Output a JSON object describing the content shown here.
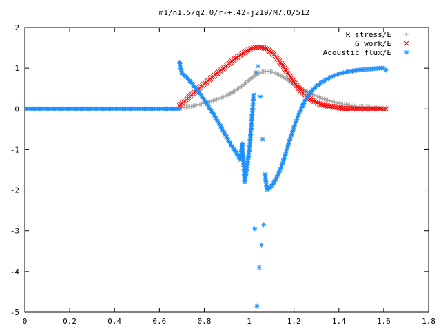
{
  "chart_data": {
    "type": "scatter",
    "title": "m1/n1.5/q2.0/r-+.42-j219/M7.0/512",
    "xlabel": "",
    "ylabel": "",
    "xlim": [
      0,
      1.8
    ],
    "ylim": [
      -5,
      2
    ],
    "x_ticks": [
      "0",
      "0.2",
      "0.4",
      "0.6",
      "0.8",
      "1",
      "1.2",
      "1.4",
      "1.6",
      "1.8"
    ],
    "y_ticks": [
      "2",
      "1",
      "0",
      "-1",
      "-2",
      "-3",
      "-4",
      "-5"
    ],
    "legend_position": "top-right",
    "grid": false,
    "series": [
      {
        "name": "R stress/E",
        "marker": "plus",
        "color": "#a0a0a0",
        "x": [
          0.69,
          0.72,
          0.75,
          0.78,
          0.81,
          0.84,
          0.87,
          0.9,
          0.93,
          0.96,
          0.99,
          1.02,
          1.05,
          1.08,
          1.11,
          1.14,
          1.17,
          1.2,
          1.23,
          1.26,
          1.29,
          1.32,
          1.35,
          1.38,
          1.41,
          1.44,
          1.47,
          1.5,
          1.53,
          1.56,
          1.59,
          1.61
        ],
        "y": [
          0.02,
          0.04,
          0.07,
          0.11,
          0.15,
          0.2,
          0.26,
          0.33,
          0.42,
          0.53,
          0.66,
          0.8,
          0.9,
          0.93,
          0.9,
          0.82,
          0.72,
          0.61,
          0.51,
          0.42,
          0.34,
          0.27,
          0.21,
          0.16,
          0.12,
          0.09,
          0.07,
          0.05,
          0.04,
          0.03,
          0.02,
          0.02
        ]
      },
      {
        "name": "G work/E",
        "marker": "cross",
        "color": "#ff0000",
        "x": [
          0.69,
          0.72,
          0.75,
          0.78,
          0.81,
          0.84,
          0.87,
          0.9,
          0.93,
          0.96,
          0.99,
          1.02,
          1.05,
          1.08,
          1.11,
          1.14,
          1.17,
          1.2,
          1.23,
          1.26,
          1.29,
          1.32,
          1.35,
          1.38,
          1.41,
          1.44,
          1.47,
          1.5,
          1.53,
          1.56,
          1.59,
          1.61
        ],
        "y": [
          0.08,
          0.22,
          0.38,
          0.52,
          0.66,
          0.8,
          0.93,
          1.06,
          1.2,
          1.32,
          1.43,
          1.5,
          1.52,
          1.47,
          1.34,
          1.14,
          0.9,
          0.66,
          0.45,
          0.29,
          0.18,
          0.11,
          0.07,
          0.04,
          0.02,
          0.01,
          0.0,
          0.0,
          0.0,
          0.0,
          0.0,
          0.0
        ]
      },
      {
        "name": "Acoustic flux/E",
        "marker": "star",
        "color": "#1e90ff",
        "x": [
          0.0,
          0.03,
          0.06,
          0.09,
          0.12,
          0.15,
          0.18,
          0.21,
          0.24,
          0.27,
          0.3,
          0.33,
          0.36,
          0.39,
          0.42,
          0.45,
          0.48,
          0.51,
          0.54,
          0.57,
          0.6,
          0.63,
          0.66,
          0.69,
          0.69,
          0.7,
          0.72,
          0.74,
          0.76,
          0.78,
          0.8,
          0.82,
          0.84,
          0.86,
          0.88,
          0.9,
          0.92,
          0.94,
          0.96,
          0.97,
          0.98,
          0.99,
          1.0,
          1.01,
          1.02,
          1.025,
          1.03,
          1.035,
          1.04,
          1.045,
          1.05,
          1.055,
          1.06,
          1.065,
          1.07,
          1.08,
          1.1,
          1.12,
          1.14,
          1.16,
          1.18,
          1.2,
          1.22,
          1.24,
          1.26,
          1.28,
          1.3,
          1.32,
          1.34,
          1.36,
          1.38,
          1.4,
          1.42,
          1.44,
          1.46,
          1.48,
          1.5,
          1.52,
          1.54,
          1.56,
          1.58,
          1.6,
          1.61
        ],
        "y": [
          0.0,
          0.0,
          0.0,
          0.0,
          0.0,
          0.0,
          0.0,
          0.0,
          0.0,
          0.0,
          0.0,
          0.0,
          0.0,
          0.0,
          0.0,
          0.0,
          0.0,
          0.0,
          0.0,
          0.0,
          0.0,
          0.0,
          0.0,
          0.0,
          1.15,
          0.88,
          0.78,
          0.66,
          0.52,
          0.38,
          0.22,
          0.05,
          -0.12,
          -0.3,
          -0.5,
          -0.7,
          -0.9,
          -1.05,
          -1.25,
          -0.85,
          -1.8,
          -1.45,
          -1.05,
          -0.4,
          0.35,
          -2.95,
          0.9,
          -4.85,
          1.05,
          -3.9,
          0.3,
          -3.35,
          -0.75,
          -2.85,
          -1.6,
          -2.0,
          -1.9,
          -1.72,
          -1.48,
          -1.15,
          -0.78,
          -0.45,
          -0.15,
          0.1,
          0.3,
          0.45,
          0.56,
          0.64,
          0.71,
          0.77,
          0.82,
          0.86,
          0.89,
          0.91,
          0.93,
          0.95,
          0.96,
          0.97,
          0.98,
          0.99,
          1.0,
          1.0,
          0.95
        ]
      }
    ]
  }
}
